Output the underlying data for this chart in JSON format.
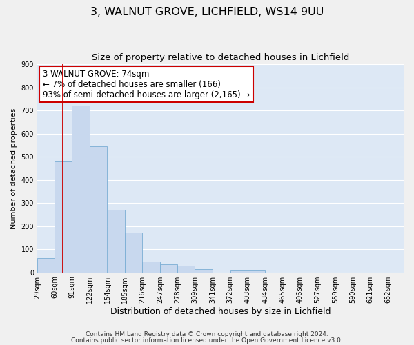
{
  "title": "3, WALNUT GROVE, LICHFIELD, WS14 9UU",
  "subtitle": "Size of property relative to detached houses in Lichfield",
  "xlabel": "Distribution of detached houses by size in Lichfield",
  "ylabel": "Number of detached properties",
  "bar_color": "#c8d8ee",
  "bar_edge_color": "#7aadd4",
  "background_color": "#dde8f5",
  "grid_color": "#ffffff",
  "annotation_line1": "3 WALNUT GROVE: 74sqm",
  "annotation_line2": "← 7% of detached houses are smaller (166)",
  "annotation_line3": "93% of semi-detached houses are larger (2,165) →",
  "annotation_box_color": "#ffffff",
  "annotation_box_edge_color": "#cc0000",
  "vline_x": 74,
  "vline_color": "#cc0000",
  "categories": [
    "29sqm",
    "60sqm",
    "91sqm",
    "122sqm",
    "154sqm",
    "185sqm",
    "216sqm",
    "247sqm",
    "278sqm",
    "309sqm",
    "341sqm",
    "372sqm",
    "403sqm",
    "434sqm",
    "465sqm",
    "496sqm",
    "527sqm",
    "559sqm",
    "590sqm",
    "621sqm",
    "652sqm"
  ],
  "bin_edges": [
    29,
    60,
    91,
    122,
    154,
    185,
    216,
    247,
    278,
    309,
    341,
    372,
    403,
    434,
    465,
    496,
    527,
    559,
    590,
    621,
    652
  ],
  "values": [
    60,
    480,
    720,
    545,
    270,
    173,
    48,
    35,
    28,
    14,
    0,
    8,
    8,
    0,
    0,
    0,
    0,
    0,
    0,
    0,
    0
  ],
  "ylim": [
    0,
    900
  ],
  "yticks": [
    0,
    100,
    200,
    300,
    400,
    500,
    600,
    700,
    800,
    900
  ],
  "footer_line1": "Contains HM Land Registry data © Crown copyright and database right 2024.",
  "footer_line2": "Contains public sector information licensed under the Open Government Licence v3.0.",
  "title_fontsize": 11.5,
  "subtitle_fontsize": 9.5,
  "xlabel_fontsize": 9,
  "ylabel_fontsize": 8,
  "tick_fontsize": 7,
  "annotation_fontsize": 8.5,
  "footer_fontsize": 6.5
}
